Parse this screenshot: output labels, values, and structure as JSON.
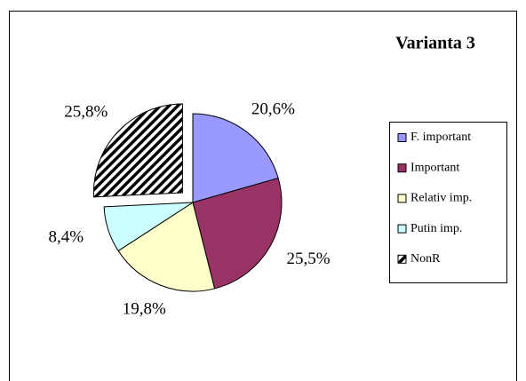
{
  "chart_data": {
    "type": "pie",
    "title": "Varianta 3",
    "categories": [
      "F. important",
      "Important",
      "Relativ imp.",
      "Putin imp.",
      "NonR"
    ],
    "values": [
      20.6,
      25.5,
      19.8,
      8.4,
      25.8
    ],
    "value_labels": [
      "20,6%",
      "25,5%",
      "19,8%",
      "8,4%",
      "25,8%"
    ],
    "colors": [
      "#9999ff",
      "#993366",
      "#ffffcc",
      "#ccffff",
      "#000000"
    ],
    "hatched": [
      false,
      false,
      false,
      false,
      true
    ],
    "exploded": [
      false,
      false,
      false,
      false,
      true
    ],
    "legend": "right"
  }
}
